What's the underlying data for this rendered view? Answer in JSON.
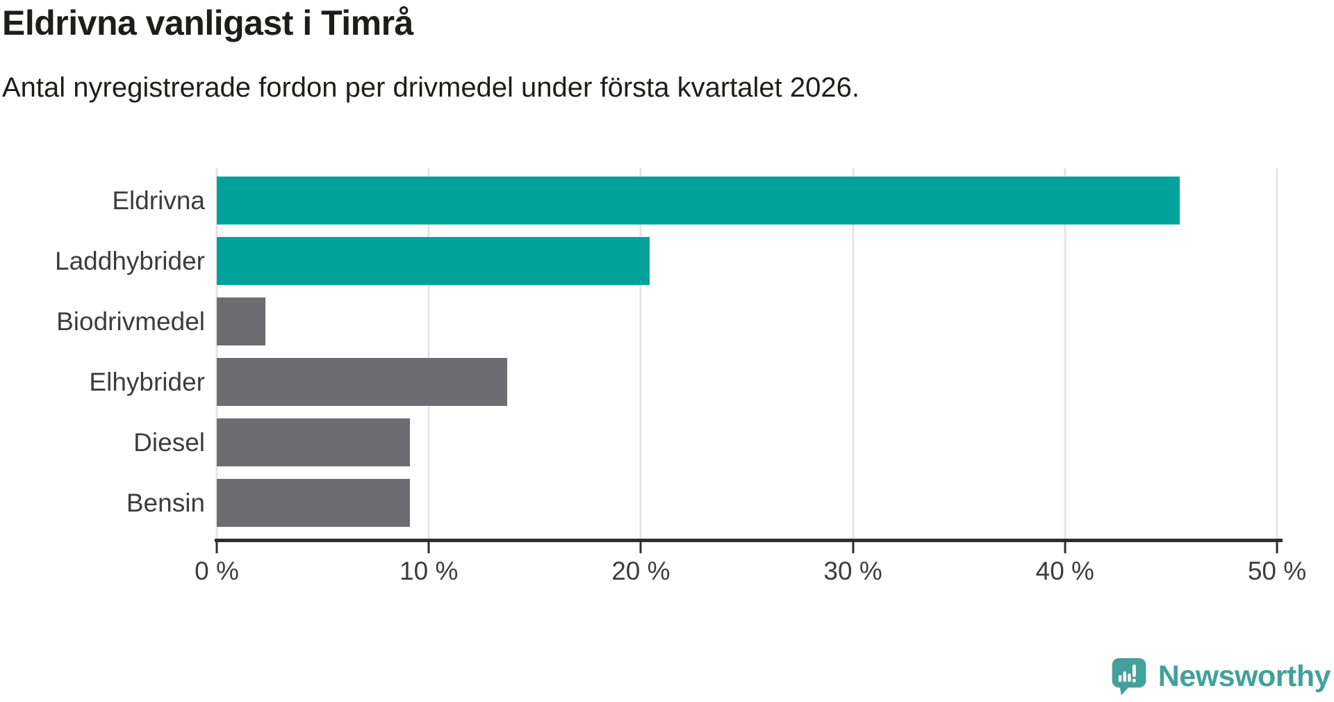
{
  "header": {
    "title": "Eldrivna vanligast i Timrå",
    "subtitle": "Antal nyregistrerade fordon per drivmedel under första kvartalet 2026."
  },
  "chart_data": {
    "type": "bar",
    "orientation": "horizontal",
    "title": "Eldrivna vanligast i Timrå",
    "subtitle": "Antal nyregistrerade fordon per drivmedel under första kvartalet 2026.",
    "categories": [
      "Eldrivna",
      "Laddhybrider",
      "Biodrivmedel",
      "Elhybrider",
      "Diesel",
      "Bensin"
    ],
    "values": [
      45.4,
      20.4,
      2.3,
      13.7,
      9.1,
      9.1
    ],
    "unit": "%",
    "xlim": [
      0,
      50
    ],
    "x_tick_values": [
      0,
      10,
      20,
      30,
      40,
      50
    ],
    "x_tick_labels": [
      "0 %",
      "10 %",
      "20 %",
      "30 %",
      "40 %",
      "50 %"
    ],
    "grid": "vertical-light-gridlines",
    "legend": "none",
    "bar_colors": [
      "#00a29a",
      "#00a29a",
      "#6c6c71",
      "#6c6c71",
      "#6c6c71",
      "#6c6c71"
    ]
  },
  "colors": {
    "accent_teal": "#00a29a",
    "neutral_gray": "#6c6c71",
    "gridline": "#e4e4e4",
    "axis": "#2e2e2e",
    "text_dark": "#1d1d1b",
    "brand_teal": "#42a19a"
  },
  "branding": {
    "name": "Newsworthy",
    "logo_icon": "newsworthy-speech-bubble-chart-icon"
  }
}
